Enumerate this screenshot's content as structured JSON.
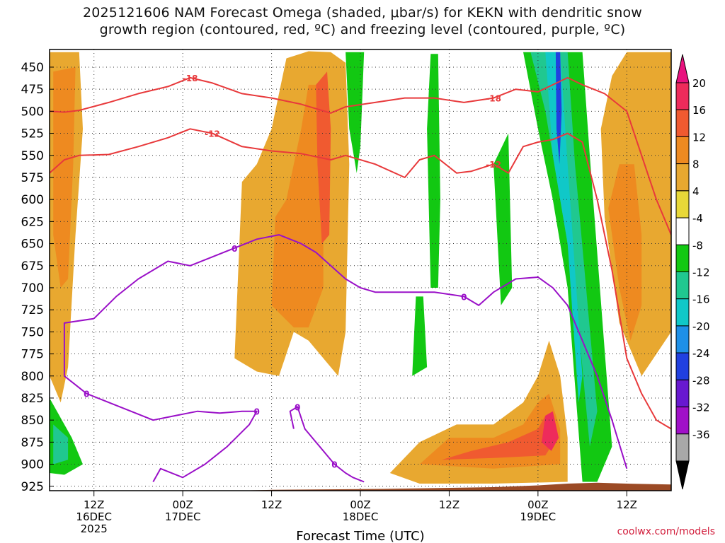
{
  "title": {
    "line1": "2025121606 NAM Forecast Omega (shaded, μbar/s) for KEKN with dendritic snow",
    "line2": "growth region (contoured, red, ºC) and freezing level (contoured, purple, ºC)"
  },
  "credit": "coolwx.com/models",
  "colors": {
    "snow_growth_contour": "#e8393b",
    "freezing_contour": "#9a10c8",
    "terrain": "#9b4a25",
    "grid": "#333333"
  },
  "chart_data": {
    "type": "heatmap",
    "title": "2025121606 NAM Forecast Omega (shaded, μbar/s) for KEKN with dendritic snow growth region (contoured, red, ºC) and freezing level (contoured, purple, ºC)",
    "xlabel": "Forecast Time (UTC)",
    "ylabel": "",
    "x_range_hours": [
      0,
      84
    ],
    "x_ticks": [
      {
        "hour": 6,
        "label": "12Z",
        "sub": "16DEC",
        "sub2": "2025"
      },
      {
        "hour": 18,
        "label": "00Z",
        "sub": "17DEC",
        "sub2": ""
      },
      {
        "hour": 30,
        "label": "12Z",
        "sub": "",
        "sub2": ""
      },
      {
        "hour": 42,
        "label": "00Z",
        "sub": "18DEC",
        "sub2": ""
      },
      {
        "hour": 54,
        "label": "12Z",
        "sub": "",
        "sub2": ""
      },
      {
        "hour": 66,
        "label": "00Z",
        "sub": "19DEC",
        "sub2": ""
      },
      {
        "hour": 78,
        "label": "12Z",
        "sub": "",
        "sub2": ""
      }
    ],
    "y_range_mb": [
      430,
      930
    ],
    "y_ticks": [
      450,
      475,
      500,
      525,
      550,
      575,
      600,
      625,
      650,
      675,
      700,
      725,
      750,
      775,
      800,
      825,
      850,
      875,
      900,
      925
    ],
    "colorbar": {
      "labels": [
        "20",
        "16",
        "12",
        "8",
        "4",
        "-4",
        "-8",
        "-12",
        "-16",
        "-20",
        "-24",
        "-28",
        "-32",
        "-36"
      ],
      "bands": [
        {
          "from": 16,
          "to": 20,
          "color": "#ee2b5b"
        },
        {
          "from": 12,
          "to": 16,
          "color": "#f05a30"
        },
        {
          "from": 8,
          "to": 12,
          "color": "#ee8a20"
        },
        {
          "from": 6,
          "to": 8,
          "color": "#e8a830"
        },
        {
          "from": 4,
          "to": 6,
          "color": "#e8d838"
        },
        {
          "from": -4,
          "to": 4,
          "color": "#ffffff"
        },
        {
          "from": -8,
          "to": -4,
          "color": "#12c812"
        },
        {
          "from": -12,
          "to": -8,
          "color": "#20c890"
        },
        {
          "from": -16,
          "to": -12,
          "color": "#10c8c8"
        },
        {
          "from": -20,
          "to": -16,
          "color": "#1e90e8"
        },
        {
          "from": -24,
          "to": -20,
          "color": "#2040e0"
        },
        {
          "from": -28,
          "to": -24,
          "color": "#6818d0"
        },
        {
          "from": -32,
          "to": -28,
          "color": "#a010c8"
        },
        {
          "from": -36,
          "to": -32,
          "color": "#a8a8a8"
        }
      ],
      "top_arrow_color": "#e8127e",
      "bottom_arrow_color": "#000000"
    },
    "omega_regions": [
      {
        "value": 6,
        "pts": [
          [
            0,
            433
          ],
          [
            4,
            433
          ],
          [
            4.5,
            520
          ],
          [
            3.5,
            640
          ],
          [
            2.5,
            790
          ],
          [
            1.5,
            830
          ],
          [
            0,
            800
          ]
        ]
      },
      {
        "value": 9,
        "pts": [
          [
            0.5,
            455
          ],
          [
            3.5,
            450
          ],
          [
            3.2,
            560
          ],
          [
            2.5,
            690
          ],
          [
            1.5,
            700
          ],
          [
            0.5,
            640
          ]
        ]
      },
      {
        "value": 6,
        "pts": [
          [
            25,
            780
          ],
          [
            26,
            580
          ],
          [
            28,
            560
          ],
          [
            30,
            520
          ],
          [
            32,
            440
          ],
          [
            35,
            432
          ],
          [
            38,
            433
          ],
          [
            40,
            445
          ],
          [
            40.5,
            560
          ],
          [
            40,
            750
          ],
          [
            39,
            800
          ],
          [
            37,
            780
          ],
          [
            35,
            760
          ],
          [
            33,
            750
          ],
          [
            31,
            800
          ],
          [
            28,
            795
          ]
        ]
      },
      {
        "value": 9,
        "pts": [
          [
            30,
            720
          ],
          [
            30.5,
            620
          ],
          [
            32,
            600
          ],
          [
            34,
            520
          ],
          [
            35,
            470
          ],
          [
            36,
            470
          ],
          [
            37,
            560
          ],
          [
            37,
            700
          ],
          [
            35,
            745
          ],
          [
            33,
            745
          ]
        ]
      },
      {
        "value": 12,
        "pts": [
          [
            36,
            470
          ],
          [
            37.5,
            455
          ],
          [
            38,
            520
          ],
          [
            37.8,
            640
          ],
          [
            36.8,
            650
          ],
          [
            36.2,
            560
          ]
        ]
      },
      {
        "value": 6,
        "pts": [
          [
            46,
            910
          ],
          [
            50,
            875
          ],
          [
            55,
            855
          ],
          [
            60,
            855
          ],
          [
            64,
            830
          ],
          [
            66,
            800
          ],
          [
            67.5,
            760
          ],
          [
            69,
            800
          ],
          [
            70,
            870
          ],
          [
            70,
            920
          ],
          [
            60,
            922
          ],
          [
            50,
            922
          ]
        ]
      },
      {
        "value": 9,
        "pts": [
          [
            50,
            900
          ],
          [
            54,
            870
          ],
          [
            60,
            870
          ],
          [
            64,
            855
          ],
          [
            66,
            830
          ],
          [
            67.5,
            820
          ],
          [
            69,
            860
          ],
          [
            69,
            900
          ],
          [
            60,
            905
          ]
        ]
      },
      {
        "value": 12,
        "pts": [
          [
            53,
            895
          ],
          [
            57,
            885
          ],
          [
            62,
            875
          ],
          [
            66,
            860
          ],
          [
            67,
            845
          ],
          [
            68.5,
            870
          ],
          [
            67,
            890
          ],
          [
            60,
            893
          ]
        ]
      },
      {
        "value": 17,
        "pts": [
          [
            66.5,
            875
          ],
          [
            67,
            845
          ],
          [
            68,
            840
          ],
          [
            68.8,
            870
          ],
          [
            67.8,
            885
          ]
        ]
      },
      {
        "value": 6,
        "pts": [
          [
            76,
            460
          ],
          [
            78,
            433
          ],
          [
            84,
            433
          ],
          [
            84,
            750
          ],
          [
            80,
            800
          ],
          [
            77,
            740
          ],
          [
            75,
            620
          ],
          [
            74.5,
            520
          ]
        ]
      },
      {
        "value": 9,
        "pts": [
          [
            75.5,
            610
          ],
          [
            77,
            560
          ],
          [
            79,
            560
          ],
          [
            80,
            640
          ],
          [
            80,
            720
          ],
          [
            78.5,
            760
          ],
          [
            77,
            700
          ]
        ]
      },
      {
        "value": -6,
        "pts": [
          [
            40,
            433
          ],
          [
            42.5,
            433
          ],
          [
            42,
            540
          ],
          [
            41.5,
            570
          ],
          [
            40.5,
            520
          ]
        ]
      },
      {
        "value": -6,
        "pts": [
          [
            49,
            800
          ],
          [
            49.5,
            710
          ],
          [
            50.5,
            710
          ],
          [
            51,
            790
          ]
        ]
      },
      {
        "value": -6,
        "pts": [
          [
            51,
            520
          ],
          [
            51.5,
            435
          ],
          [
            52.5,
            435
          ],
          [
            52.8,
            600
          ],
          [
            52.5,
            700
          ],
          [
            51.5,
            700
          ]
        ]
      },
      {
        "value": -6,
        "pts": [
          [
            60,
            560
          ],
          [
            62,
            525
          ],
          [
            62.5,
            700
          ],
          [
            61,
            720
          ]
        ]
      },
      {
        "value": -6,
        "pts": [
          [
            64,
            433
          ],
          [
            72,
            433
          ],
          [
            73,
            550
          ],
          [
            76,
            880
          ],
          [
            74,
            920
          ],
          [
            72,
            920
          ],
          [
            70,
            700
          ],
          [
            68,
            600
          ],
          [
            66,
            520
          ]
        ]
      },
      {
        "value": -10,
        "pts": [
          [
            65,
            433
          ],
          [
            70,
            433
          ],
          [
            71,
            560
          ],
          [
            74,
            840
          ],
          [
            73,
            880
          ],
          [
            71,
            700
          ],
          [
            69,
            600
          ],
          [
            67,
            500
          ]
        ]
      },
      {
        "value": -14,
        "pts": [
          [
            67,
            433
          ],
          [
            69,
            433
          ],
          [
            70,
            560
          ],
          [
            72,
            800
          ],
          [
            71.5,
            830
          ],
          [
            70,
            650
          ],
          [
            68,
            550
          ]
        ]
      },
      {
        "value": -22,
        "pts": [
          [
            68.4,
            433
          ],
          [
            69,
            433
          ],
          [
            69.2,
            500
          ],
          [
            68.9,
            560
          ],
          [
            68.5,
            520
          ]
        ]
      },
      {
        "value": -6,
        "pts": [
          [
            0,
            825
          ],
          [
            3,
            870
          ],
          [
            4.5,
            900
          ],
          [
            2,
            912
          ],
          [
            0,
            910
          ]
        ]
      },
      {
        "value": -10,
        "pts": [
          [
            0.5,
            855
          ],
          [
            2.5,
            870
          ],
          [
            2.5,
            895
          ],
          [
            0.5,
            900
          ]
        ]
      }
    ],
    "dgz_contours": [
      {
        "label": "-18",
        "x": [
          0,
          2,
          4,
          8,
          12,
          16,
          19,
          22,
          26,
          30,
          34,
          38,
          40,
          44,
          48,
          52,
          56,
          60,
          63,
          66,
          68,
          70,
          72,
          75,
          78,
          80,
          82,
          84
        ],
        "y": [
          500,
          501,
          499,
          490,
          480,
          472,
          462,
          468,
          480,
          485,
          492,
          502,
          495,
          490,
          485,
          485,
          490,
          485,
          475,
          478,
          470,
          462,
          470,
          480,
          500,
          550,
          600,
          640
        ]
      },
      {
        "label": "-12",
        "x": [
          0,
          2,
          4,
          8,
          12,
          16,
          19,
          22,
          26,
          30,
          34,
          38,
          40,
          44,
          48,
          50,
          52,
          55,
          57,
          60,
          62,
          64,
          66,
          68,
          70,
          72,
          74,
          76,
          78,
          80,
          82,
          84
        ],
        "y": [
          570,
          555,
          550,
          549,
          540,
          530,
          520,
          525,
          540,
          545,
          548,
          555,
          550,
          560,
          575,
          555,
          550,
          570,
          568,
          560,
          570,
          540,
          535,
          532,
          525,
          535,
          600,
          680,
          780,
          820,
          850,
          860
        ]
      }
    ],
    "freezing_contours": [
      {
        "label": "0",
        "x": [
          6,
          9,
          12,
          16,
          19,
          22,
          25,
          28,
          31,
          34,
          36,
          38,
          40,
          42,
          44,
          48,
          52,
          56,
          58,
          60,
          63,
          66,
          68,
          70,
          72,
          74,
          76,
          78
        ],
        "y": [
          735,
          710,
          690,
          670,
          675,
          665,
          655,
          645,
          640,
          650,
          660,
          675,
          690,
          700,
          705,
          705,
          705,
          710,
          720,
          705,
          690,
          688,
          700,
          720,
          760,
          800,
          850,
          905
        ]
      },
      {
        "label": "0",
        "x": [
          6,
          2,
          2,
          5,
          8,
          11,
          14,
          17,
          20,
          23,
          26,
          28,
          27,
          24,
          21,
          18,
          15,
          14
        ],
        "y": [
          735,
          740,
          800,
          820,
          830,
          840,
          850,
          845,
          840,
          842,
          840,
          840,
          855,
          880,
          900,
          915,
          905,
          920
        ]
      },
      {
        "label": "0",
        "x": [
          33,
          32.5,
          33.5,
          34.5,
          36,
          37.5,
          38.5,
          40,
          41,
          42.5
        ],
        "y": [
          860,
          840,
          835,
          860,
          875,
          890,
          900,
          910,
          915,
          920
        ]
      }
    ],
    "terrain_mb": 925
  },
  "axis": {
    "xlabel": "Forecast Time (UTC)"
  }
}
